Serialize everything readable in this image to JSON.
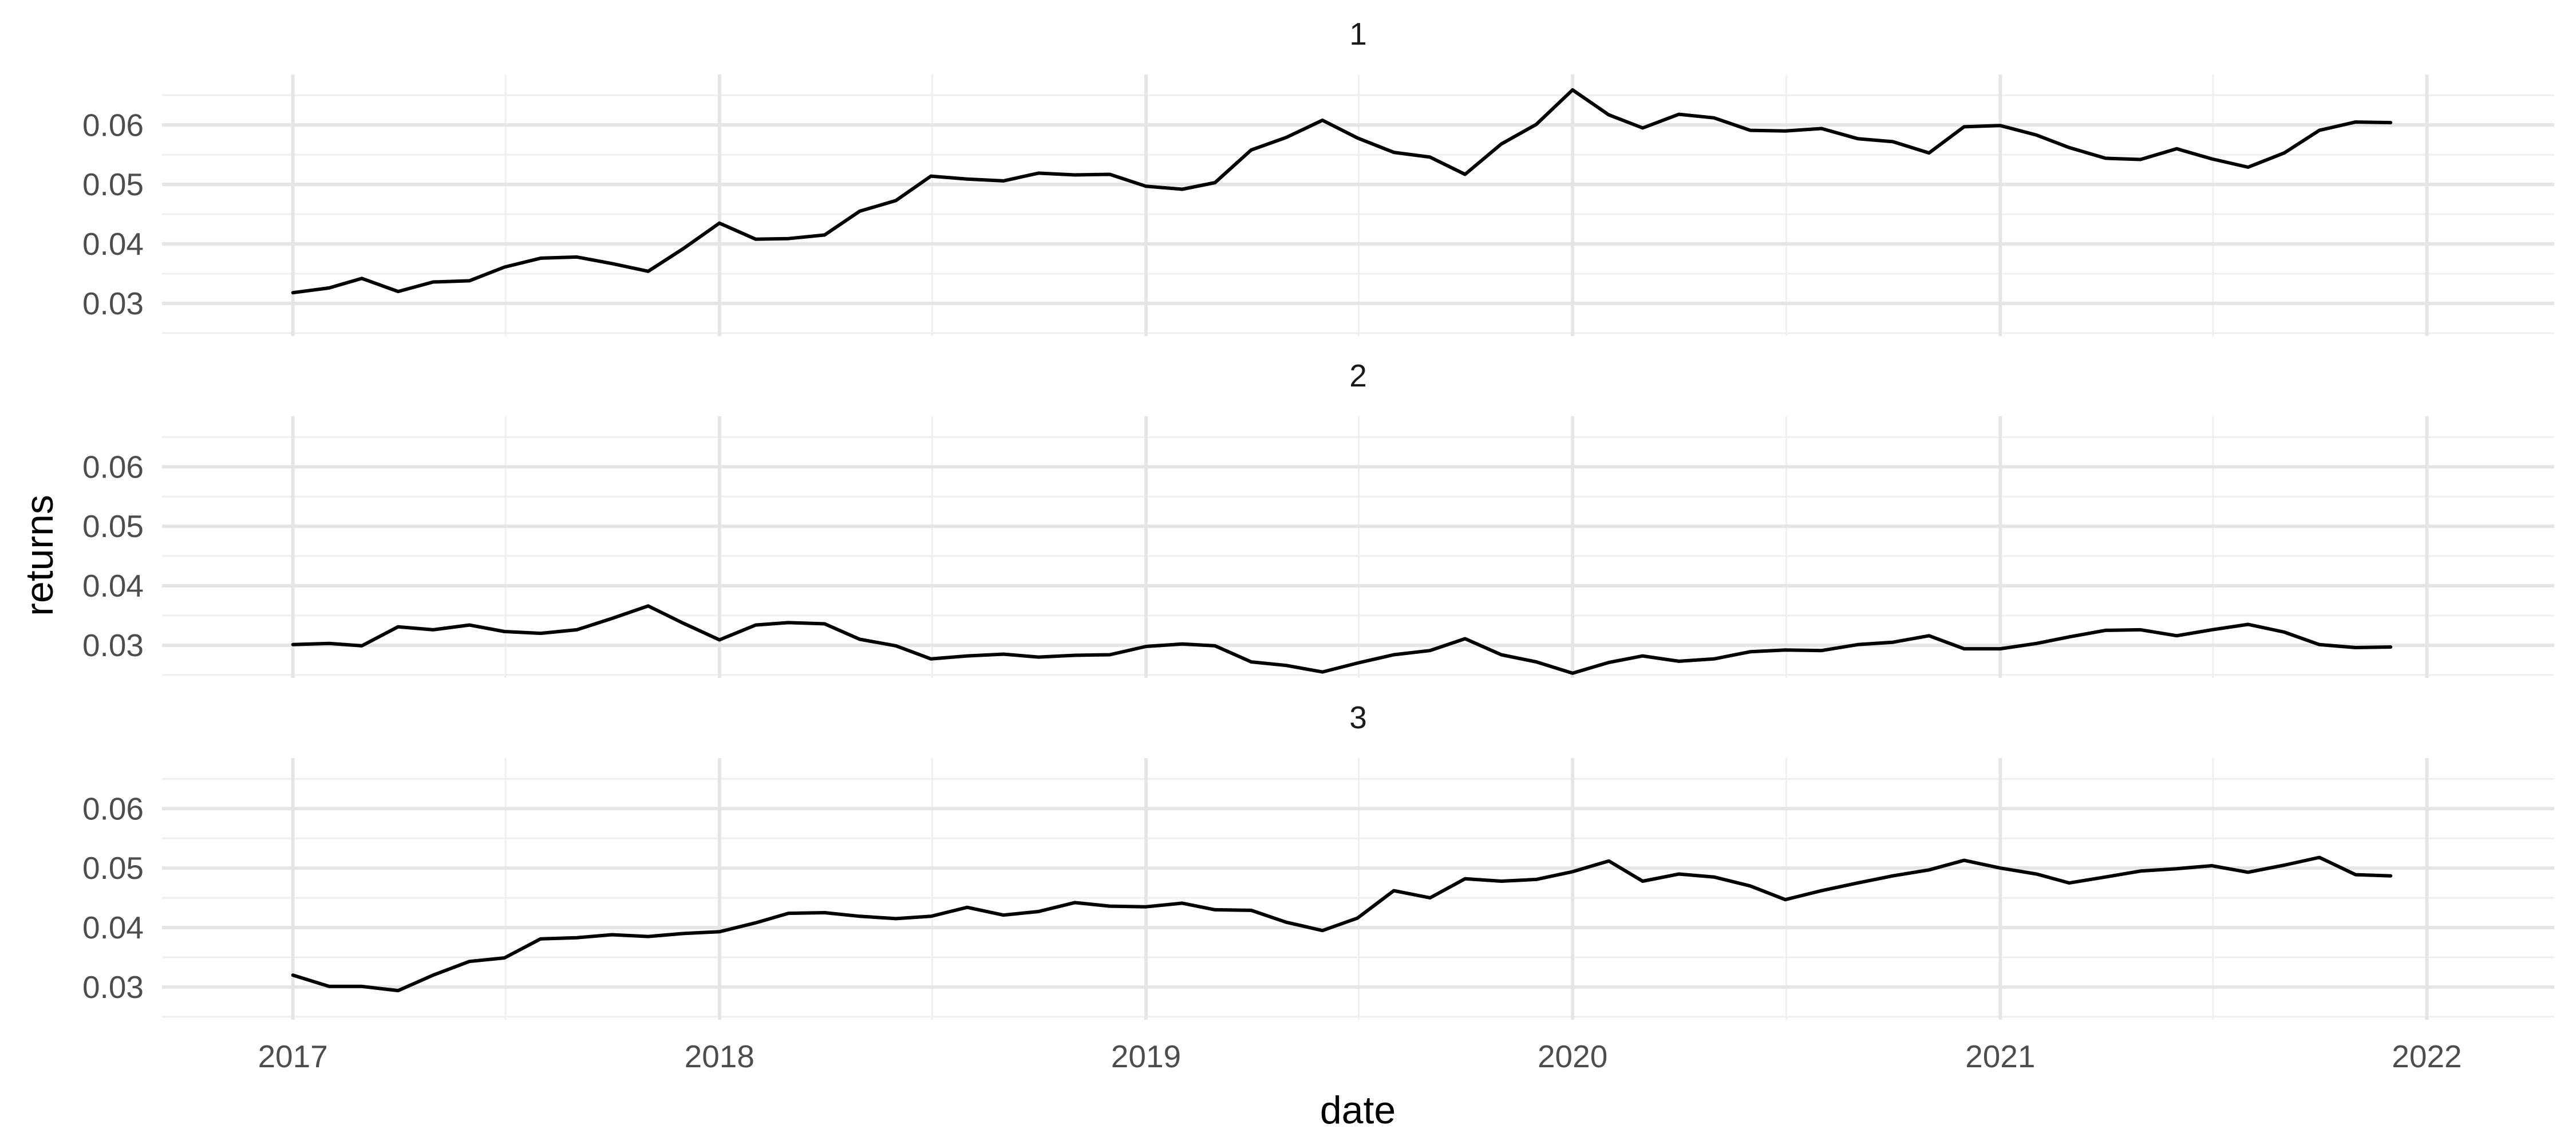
{
  "chart_data": {
    "type": "line",
    "xlabel": "date",
    "ylabel": "returns",
    "x_ticks": [
      "2017",
      "2018",
      "2019",
      "2020",
      "2021",
      "2022"
    ],
    "y_ticks": [
      "0.03",
      "0.04",
      "0.05",
      "0.06"
    ],
    "ylim": [
      0.0245,
      0.0685
    ],
    "xlim": [
      "2016-09-11",
      "2022-04-20"
    ],
    "grid": true,
    "facet_by": "panel",
    "dates": [
      "2017-01",
      "2017-02",
      "2017-03",
      "2017-04",
      "2017-05",
      "2017-06",
      "2017-07",
      "2017-08",
      "2017-09",
      "2017-10",
      "2017-11",
      "2017-12",
      "2018-01",
      "2018-02",
      "2018-03",
      "2018-04",
      "2018-05",
      "2018-06",
      "2018-07",
      "2018-08",
      "2018-09",
      "2018-10",
      "2018-11",
      "2018-12",
      "2019-01",
      "2019-02",
      "2019-03",
      "2019-04",
      "2019-05",
      "2019-06",
      "2019-07",
      "2019-08",
      "2019-09",
      "2019-10",
      "2019-11",
      "2019-12",
      "2020-01",
      "2020-02",
      "2020-03",
      "2020-04",
      "2020-05",
      "2020-06",
      "2020-07",
      "2020-08",
      "2020-09",
      "2020-10",
      "2020-11",
      "2020-12",
      "2021-01",
      "2021-02",
      "2021-03",
      "2021-04",
      "2021-05",
      "2021-06",
      "2021-07",
      "2021-08",
      "2021-09",
      "2021-10",
      "2021-11",
      "2021-12"
    ],
    "panels": [
      {
        "label": "1",
        "values": [
          0.0318,
          0.0326,
          0.0342,
          0.032,
          0.0336,
          0.0338,
          0.0361,
          0.0376,
          0.0378,
          0.0367,
          0.0354,
          0.0392,
          0.0435,
          0.0408,
          0.0409,
          0.0415,
          0.0455,
          0.0473,
          0.0514,
          0.0509,
          0.0506,
          0.0519,
          0.0516,
          0.0517,
          0.0497,
          0.0492,
          0.0503,
          0.0558,
          0.0579,
          0.0608,
          0.0578,
          0.0554,
          0.0546,
          0.0517,
          0.0568,
          0.0601,
          0.0659,
          0.0617,
          0.0595,
          0.0618,
          0.0612,
          0.0591,
          0.059,
          0.0594,
          0.0577,
          0.0572,
          0.0553,
          0.0597,
          0.0599,
          0.0583,
          0.0562,
          0.0544,
          0.0542,
          0.056,
          0.0543,
          0.0529,
          0.0553,
          0.0591,
          0.0605,
          0.0604
        ]
      },
      {
        "label": "2",
        "values": [
          0.0301,
          0.0303,
          0.0299,
          0.0331,
          0.0326,
          0.0334,
          0.0323,
          0.032,
          0.0326,
          0.0345,
          0.0366,
          0.0337,
          0.0309,
          0.0334,
          0.0338,
          0.0336,
          0.031,
          0.0299,
          0.0277,
          0.0282,
          0.0285,
          0.028,
          0.0283,
          0.0284,
          0.0298,
          0.0302,
          0.0299,
          0.0272,
          0.0266,
          0.0255,
          0.027,
          0.0284,
          0.0291,
          0.0311,
          0.0284,
          0.0272,
          0.0253,
          0.0271,
          0.0282,
          0.0273,
          0.0277,
          0.0289,
          0.0292,
          0.0291,
          0.0301,
          0.0305,
          0.0316,
          0.0294,
          0.0294,
          0.0303,
          0.0314,
          0.0325,
          0.0326,
          0.0316,
          0.0326,
          0.0335,
          0.0322,
          0.0301,
          0.0296,
          0.0297
        ]
      },
      {
        "label": "3",
        "values": [
          0.032,
          0.0301,
          0.0301,
          0.0294,
          0.032,
          0.0343,
          0.0349,
          0.0381,
          0.0383,
          0.0388,
          0.0385,
          0.039,
          0.0393,
          0.0408,
          0.0424,
          0.0425,
          0.0419,
          0.0415,
          0.0419,
          0.0434,
          0.0421,
          0.0427,
          0.0442,
          0.0436,
          0.0435,
          0.0441,
          0.043,
          0.0429,
          0.0409,
          0.0395,
          0.0416,
          0.0462,
          0.045,
          0.0482,
          0.0478,
          0.0481,
          0.0494,
          0.0512,
          0.0478,
          0.049,
          0.0485,
          0.047,
          0.0447,
          0.0462,
          0.0475,
          0.0487,
          0.0497,
          0.0513,
          0.05,
          0.049,
          0.0475,
          0.0485,
          0.0495,
          0.0499,
          0.0504,
          0.0493,
          0.0505,
          0.0518,
          0.0489,
          0.0487
        ]
      }
    ]
  }
}
